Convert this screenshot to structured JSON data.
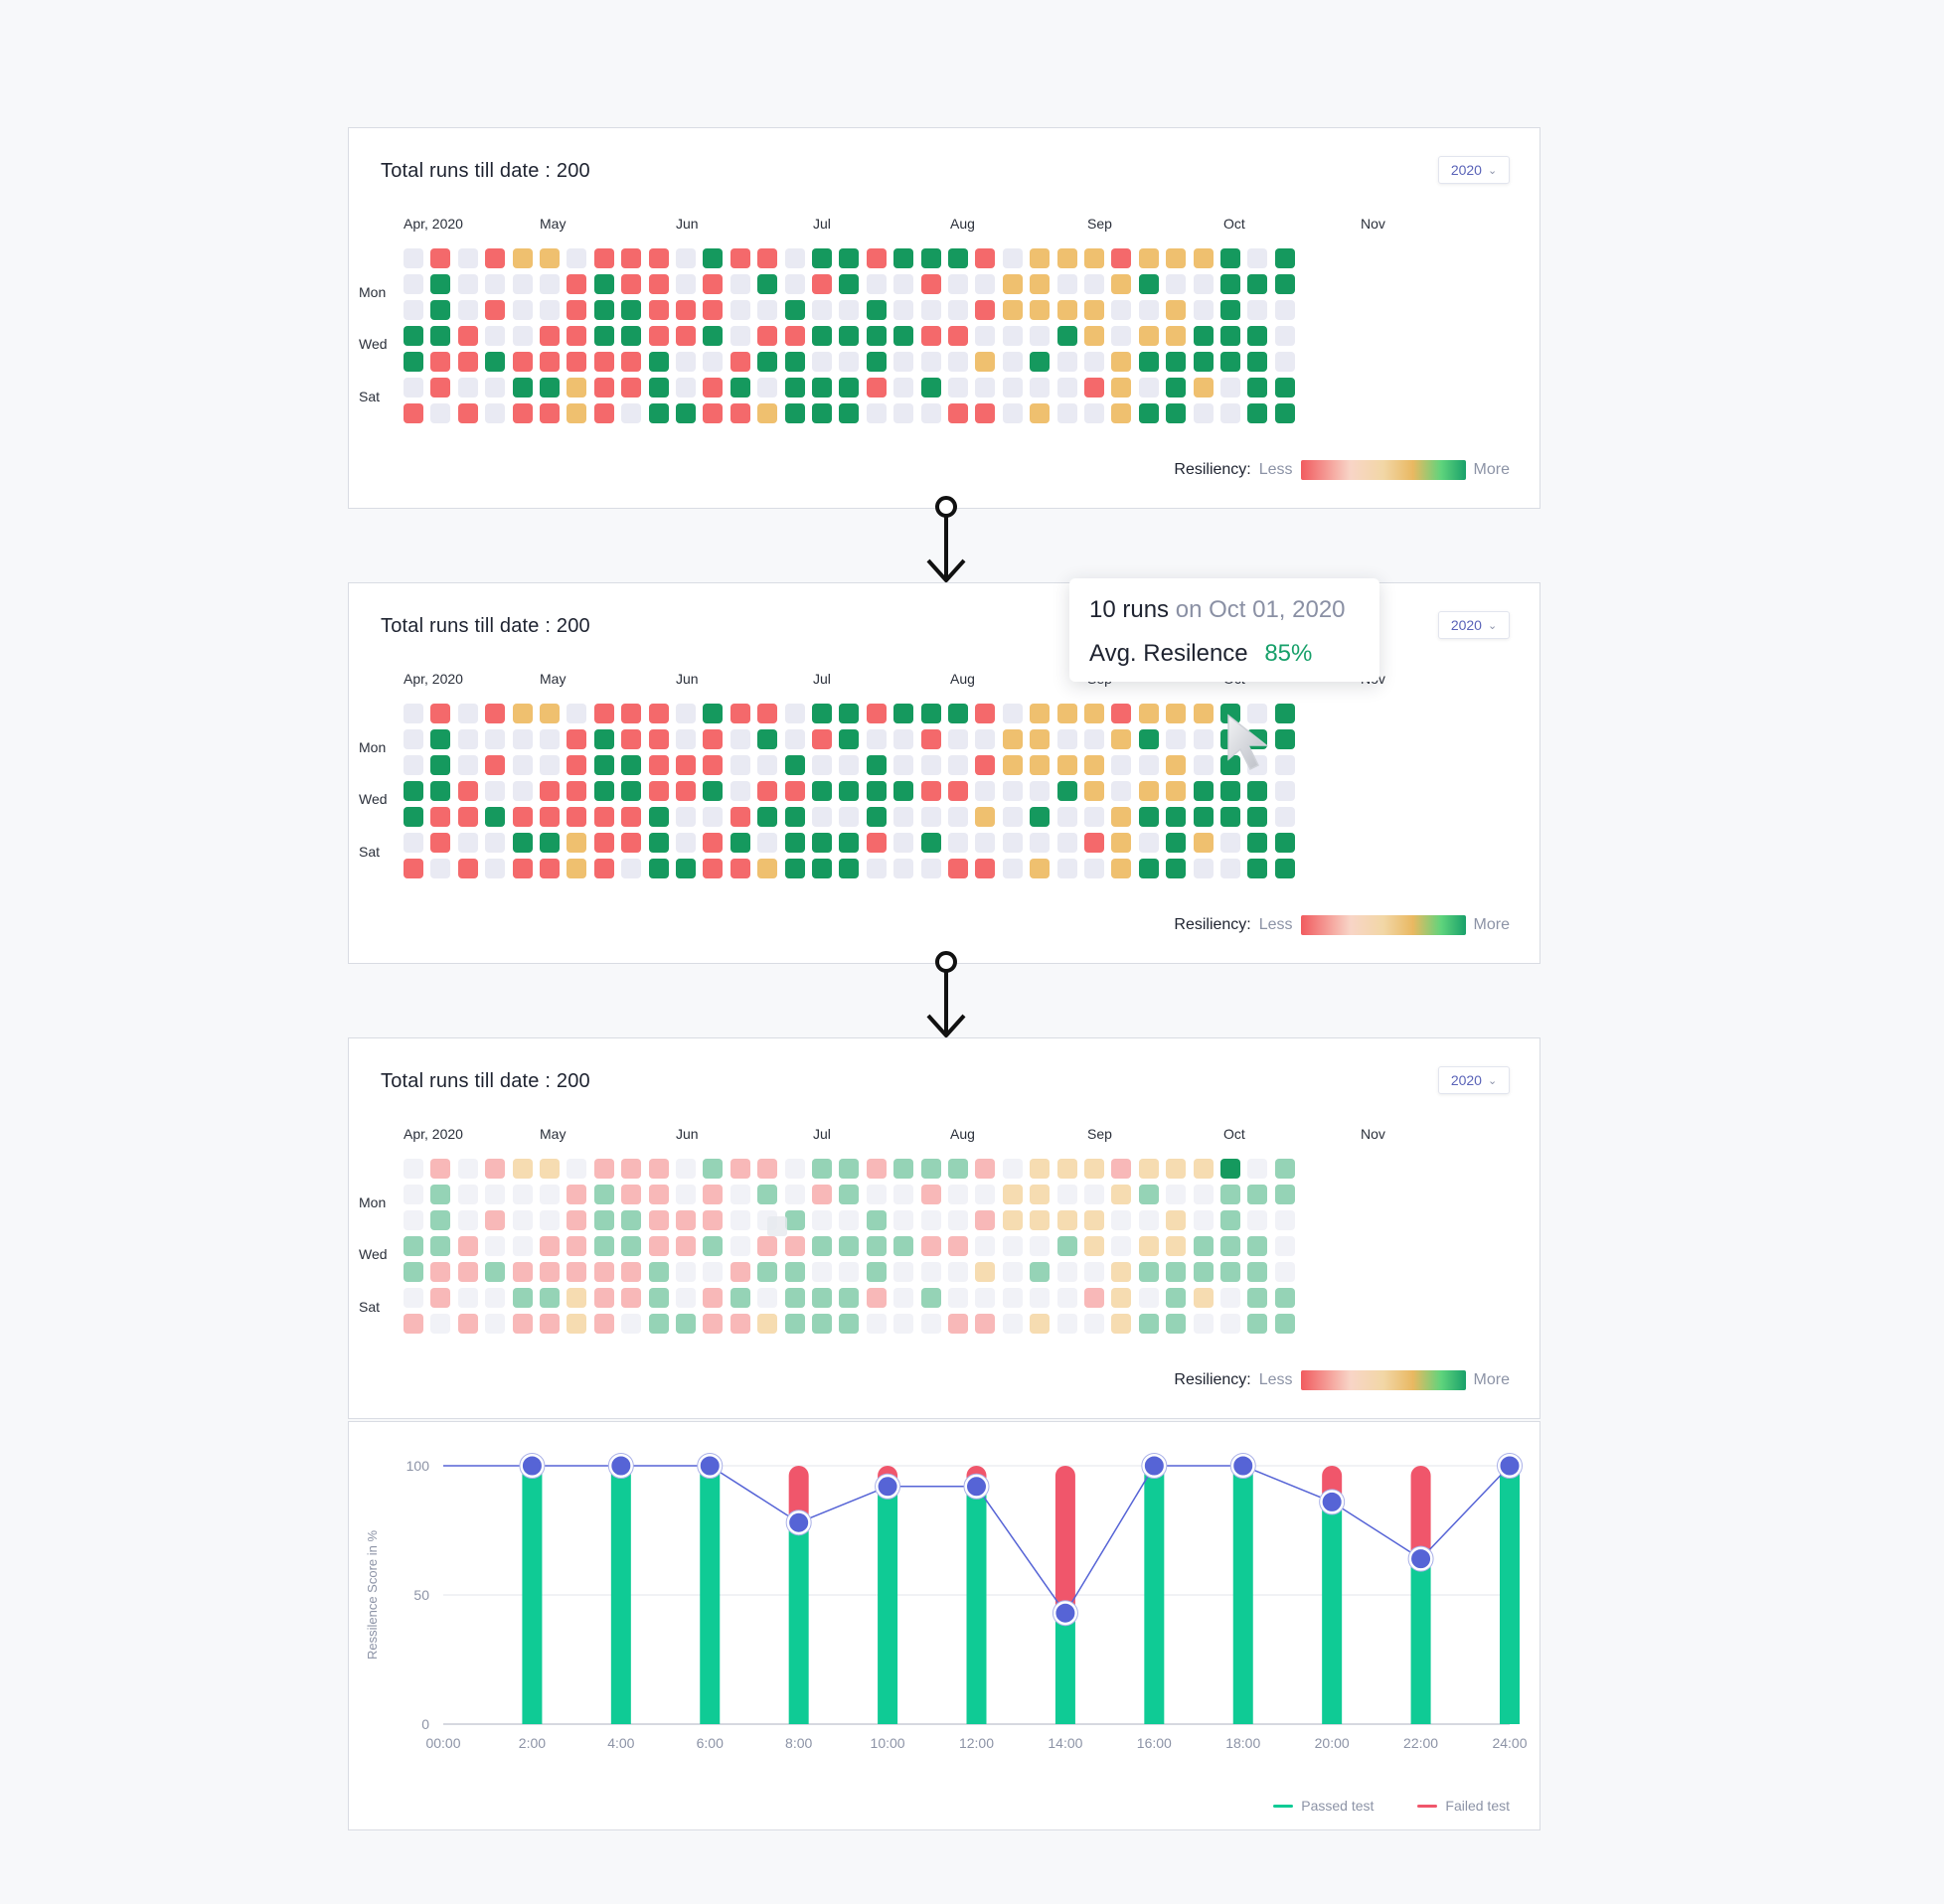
{
  "panels": [
    {
      "title": "Total runs till date : 200",
      "year": "2020",
      "months": [
        "Apr, 2020",
        "May",
        "Jun",
        "Jul",
        "Aug",
        "Sep",
        "Oct",
        "Nov"
      ],
      "days": [
        "Mon",
        "Wed",
        "Sat"
      ],
      "legend": {
        "label": "Resiliency:",
        "less": "Less",
        "more": "More"
      }
    },
    {
      "title": "Total runs till date : 200",
      "year": "2020",
      "months": [
        "Apr, 2020",
        "May",
        "Jun",
        "Jul",
        "Aug",
        "Sep",
        "Oct",
        "Nov"
      ],
      "days": [
        "Mon",
        "Wed",
        "Sat"
      ],
      "legend": {
        "label": "Resiliency:",
        "less": "Less",
        "more": "More"
      }
    },
    {
      "title": "Total runs till date : 200",
      "year": "2020",
      "months": [
        "Apr, 2020",
        "May",
        "Jun",
        "Jul",
        "Aug",
        "Sep",
        "Oct",
        "Nov"
      ],
      "days": [
        "Mon",
        "Wed",
        "Sat"
      ],
      "legend": {
        "label": "Resiliency:",
        "less": "Less",
        "more": "More"
      }
    }
  ],
  "heatmap": {
    "palette": {
      "R": "#f4696b",
      "E": "#e9eaf3",
      "O": "#efc06f",
      "G": "#15995e"
    },
    "faded_palette": {
      "R": "#f8b8b8",
      "E": "#f1f2f7",
      "O": "#f6dcb1",
      "G": "#95d3b6"
    },
    "rows": [
      "ERERO OERRRE GRRE GGRGGGR EOOOROOOGE GGGGGE GG",
      "EGEEEERGRRE REGERGEEREE OOEEOGEEGGGGEGOR",
      "EGEREERGGRRRE EGEEGEEEROOOOEEOEGEEGGGGGRGGG",
      "GGREERRGGRRGERRGGGGRREEEGOEOOGGGEGGGGGGGGG",
      "GRRGRRRRRGEERGGEEGEEEOEGEEOGGGGGEGGRGE",
      "EREEGGORRGERGEGGGREGEEEEEROEGOEGGGGGGGGEGGG",
      "RERERROREGGRROGGGEEERREOEEOGGEEGGGEEGG"
    ],
    "highlight": {
      "row": 0,
      "col": 30
    }
  },
  "tooltip": {
    "runs": "10 runs",
    "on": "on Oct 01, 2020",
    "label": "Avg. Resilence",
    "value": "85%"
  },
  "chart_data": {
    "type": "bar",
    "ylabel": "Ressilence Score in %",
    "ylim": [
      0,
      100
    ],
    "yticks": [
      0,
      50,
      100
    ],
    "xticks": [
      "00:00",
      "2:00",
      "4:00",
      "6:00",
      "8:00",
      "10:00",
      "12:00",
      "14:00",
      "16:00",
      "18:00",
      "20:00",
      "22:00",
      "24:00"
    ],
    "categories": [
      "2:00",
      "4:00",
      "6:00",
      "8:00",
      "10:00",
      "12:00",
      "14:00",
      "16:00",
      "18:00",
      "20:00",
      "22:00",
      "24:00"
    ],
    "series": [
      {
        "name": "Passed test",
        "color": "#0fcb95",
        "values": [
          100,
          100,
          100,
          78,
          92,
          92,
          43,
          100,
          100,
          86,
          64,
          100
        ]
      },
      {
        "name": "Failed test",
        "color": "#f0566b",
        "values": [
          0,
          0,
          0,
          22,
          8,
          8,
          57,
          0,
          0,
          14,
          36,
          0
        ]
      }
    ],
    "line": {
      "color": "#5664d6",
      "values": [
        100,
        100,
        100,
        100,
        78,
        92,
        92,
        43,
        100,
        100,
        86,
        64,
        100
      ],
      "x": [
        "00:00",
        "2:00",
        "4:00",
        "6:00",
        "8:00",
        "10:00",
        "12:00",
        "14:00",
        "16:00",
        "18:00",
        "20:00",
        "22:00",
        "24:00"
      ]
    }
  },
  "chart_legend": [
    {
      "label": "Passed test",
      "color": "#0fcb95"
    },
    {
      "label": "Failed test",
      "color": "#f0566b"
    }
  ]
}
